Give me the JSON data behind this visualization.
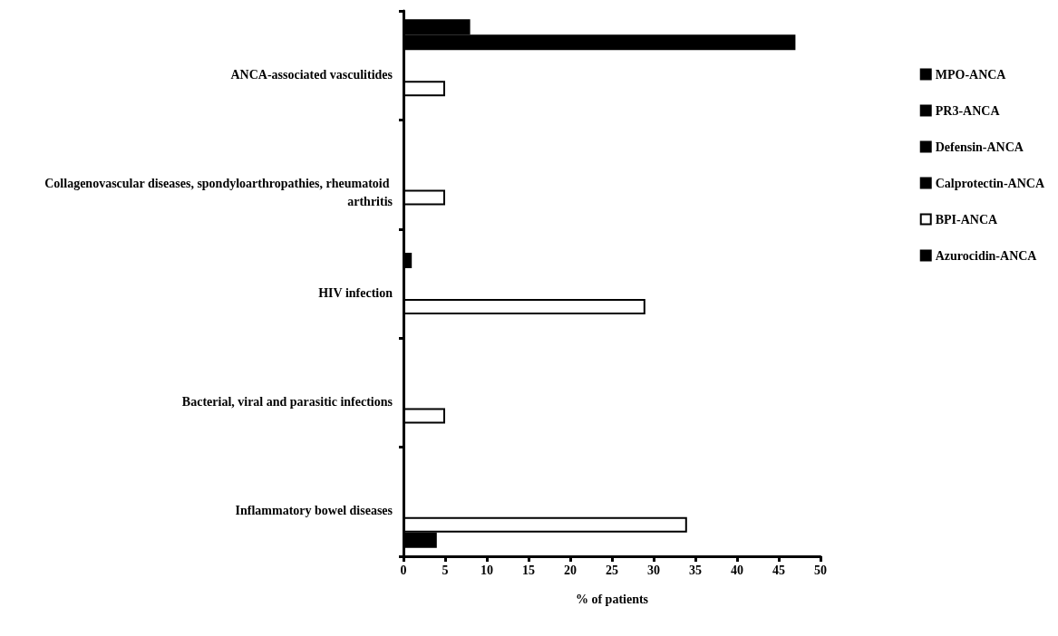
{
  "chart_data": {
    "type": "bar",
    "orientation": "horizontal",
    "xlabel": "% of patients",
    "categories": [
      "ANCA-associated vasculitides",
      "Collagenovascular diseases, spondyloarthropathies, rheumatoid arthritis",
      "HIV infection",
      "Bacterial, viral and parasitic infections",
      "Inflammatory bowel diseases"
    ],
    "series": [
      {
        "name": "MPO-ANCA",
        "color": "#000000",
        "values": [
          8,
          0,
          0,
          0,
          0
        ]
      },
      {
        "name": "PR3-ANCA",
        "color": "#000000",
        "values": [
          47,
          0,
          1,
          0,
          0
        ]
      },
      {
        "name": "Defensin-ANCA",
        "color": "#000000",
        "values": [
          0,
          0,
          0,
          0,
          0
        ]
      },
      {
        "name": "Calprotectin-ANCA",
        "color": "#000000",
        "values": [
          0,
          0,
          0,
          0,
          0
        ]
      },
      {
        "name": "BPI-ANCA",
        "color": "#ffffff",
        "values": [
          5,
          5,
          29,
          5,
          34
        ]
      },
      {
        "name": "Azurocidin-ANCA",
        "color": "#000000",
        "values": [
          0,
          0,
          0,
          0,
          4
        ]
      }
    ],
    "xlim": [
      0,
      50
    ],
    "xticks": [
      0,
      5,
      10,
      15,
      20,
      25,
      30,
      35,
      40,
      45,
      50
    ],
    "grid": false,
    "legend": "right"
  }
}
